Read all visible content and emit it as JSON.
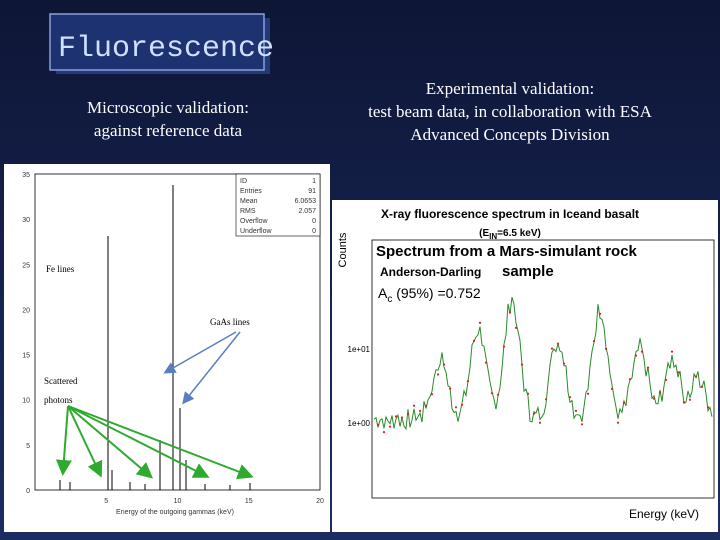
{
  "title": "Fluorescence",
  "left_heading": [
    "Microscopic validation:",
    "against reference data"
  ],
  "right_heading": [
    "Experimental validation:",
    "test beam data, in collaboration with ESA",
    "Advanced Concepts Division"
  ],
  "left_plot": {
    "stats": [
      [
        "ID",
        "1"
      ],
      [
        "Entries",
        "91"
      ],
      [
        "Mean",
        "6.0653"
      ],
      [
        "RMS",
        "2.057"
      ],
      [
        "Overflow",
        "0"
      ],
      [
        "Underflow",
        "0"
      ]
    ],
    "yticks": [
      "0",
      "5",
      "10",
      "15",
      "20",
      "25",
      "30",
      "35"
    ],
    "xticks": [
      "5",
      "10",
      "15",
      "20"
    ],
    "xlabel": "Energy of the outgoing gammas (keV)",
    "fe_label": "Fe lines",
    "gaas_label": "GaAs lines",
    "scattered_label": [
      "Scattered",
      "photons"
    ]
  },
  "right_plot": {
    "title": "X-ray fluorescence spectrum  in Iceand basalt",
    "subtitle": [
      "(E",
      "IN",
      "=6.5 keV)"
    ],
    "ylabel": "Counts",
    "yticks": [
      "1e+01",
      "1e+00"
    ],
    "xlabel": "Energy (keV)",
    "overlay": [
      "Spectrum from a Mars-simulant rock",
      "sample"
    ],
    "test_name": "Anderson-Darling",
    "critical": [
      "A",
      "c",
      " (95%) =0.752"
    ]
  }
}
